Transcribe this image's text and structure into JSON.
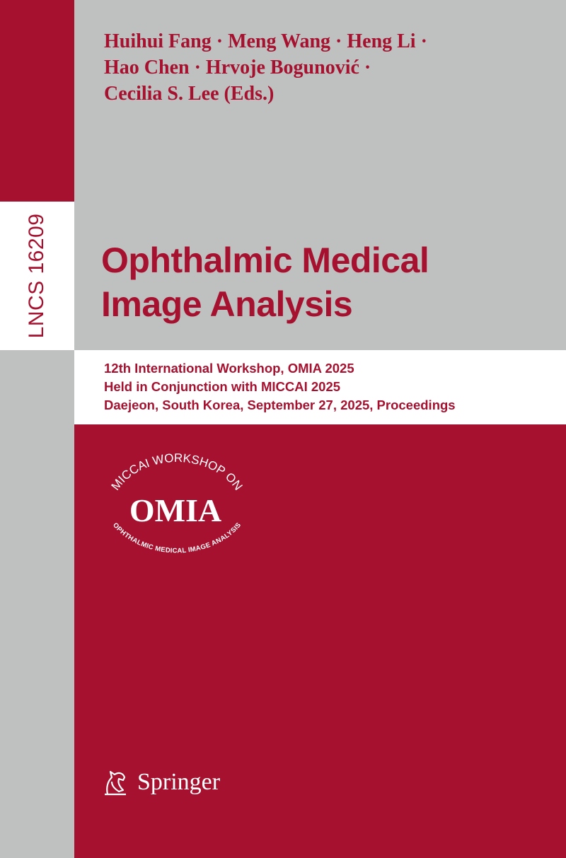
{
  "series_label": "LNCS 16209",
  "editors": [
    "Huihui Fang · Meng Wang · Heng Li ·",
    "Hao Chen · Hrvoje Bogunović ·",
    "Cecilia S. Lee (Eds.)"
  ],
  "title": [
    "Ophthalmic Medical",
    "Image Analysis"
  ],
  "subtitle": [
    "12th International Workshop, OMIA 2025",
    "Held in Conjunction with MICCAI 2025",
    "Daejeon, South Korea, September 27, 2025, Proceedings"
  ],
  "logo": {
    "top_arc": "MICCAI WORKSHOP ON",
    "center": "OMIA",
    "bottom_arc": "OPHTHALMIC MEDICAL IMAGE ANALYSIS"
  },
  "publisher": {
    "name": "Springer",
    "icon": "springer-horse-icon"
  },
  "colors": {
    "brand_red": "#a6112f",
    "gray": "#bfc1c0",
    "white": "#ffffff"
  }
}
